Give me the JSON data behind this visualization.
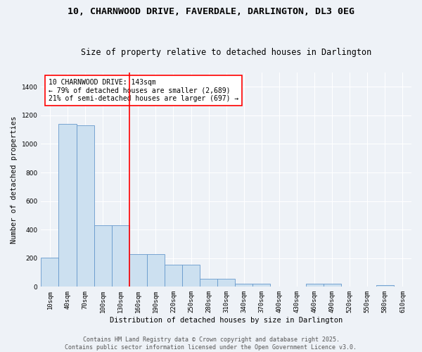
{
  "title_line1": "10, CHARNWOOD DRIVE, FAVERDALE, DARLINGTON, DL3 0EG",
  "title_line2": "Size of property relative to detached houses in Darlington",
  "xlabel": "Distribution of detached houses by size in Darlington",
  "ylabel": "Number of detached properties",
  "categories": [
    "10sqm",
    "40sqm",
    "70sqm",
    "100sqm",
    "130sqm",
    "160sqm",
    "190sqm",
    "220sqm",
    "250sqm",
    "280sqm",
    "310sqm",
    "340sqm",
    "370sqm",
    "400sqm",
    "430sqm",
    "460sqm",
    "490sqm",
    "520sqm",
    "550sqm",
    "580sqm",
    "610sqm"
  ],
  "values": [
    205,
    1140,
    1130,
    430,
    430,
    230,
    230,
    155,
    155,
    55,
    55,
    20,
    20,
    0,
    0,
    20,
    20,
    0,
    0,
    10,
    0
  ],
  "bar_color": "#cce0f0",
  "bar_edge_color": "#6699cc",
  "red_line_x": 4.5,
  "annotation_text": "10 CHARNWOOD DRIVE: 143sqm\n← 79% of detached houses are smaller (2,689)\n21% of semi-detached houses are larger (697) →",
  "annotation_box_color": "white",
  "annotation_box_edgecolor": "red",
  "ylim": [
    0,
    1500
  ],
  "yticks": [
    0,
    200,
    400,
    600,
    800,
    1000,
    1200,
    1400
  ],
  "background_color": "#eef2f7",
  "plot_bg_color": "#eef2f7",
  "grid_color": "white",
  "footer_line1": "Contains HM Land Registry data © Crown copyright and database right 2025.",
  "footer_line2": "Contains public sector information licensed under the Open Government Licence v3.0.",
  "title_fontsize": 9.5,
  "subtitle_fontsize": 8.5,
  "axis_label_fontsize": 7.5,
  "tick_fontsize": 6.5,
  "annotation_fontsize": 7,
  "footer_fontsize": 6
}
